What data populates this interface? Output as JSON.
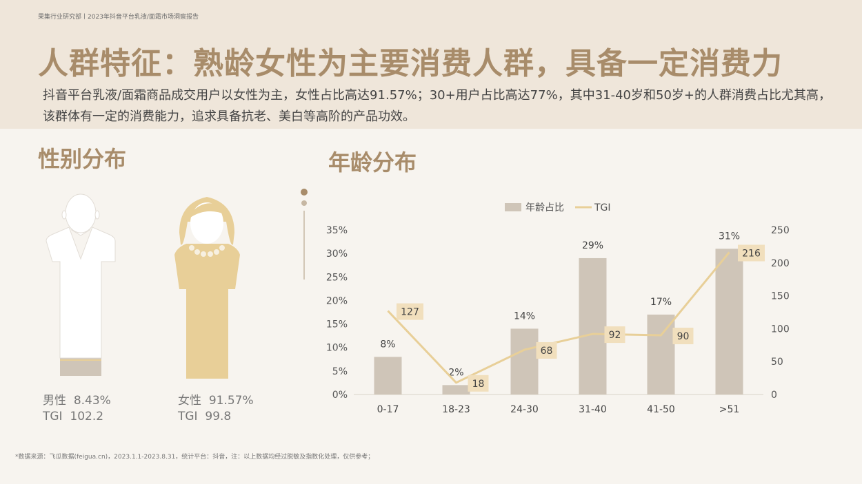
{
  "header": {
    "breadcrumb": "果集行业研究部丨2023年抖音平台乳液/面霜市场洞察报告",
    "title": "人群特征：熟龄女性为主要消费人群，具备一定消费力",
    "description": "抖音平台乳液/面霜商品成交用户以女性为主，女性占比高达91.57%；30+用户占比高达77%，其中31-40岁和50岁+的人群消费占比尤其高，该群体有一定的消费能力，追求具备抗老、美白等高阶的产品功效。"
  },
  "gender": {
    "title": "性别分布",
    "male": {
      "label": "男性",
      "pct": "8.43%",
      "tgi_label": "TGI",
      "tgi": "102.2",
      "share": 0.0843
    },
    "female": {
      "label": "女性",
      "pct": "91.57%",
      "tgi_label": "TGI",
      "tgi": "99.8",
      "share": 0.9157
    }
  },
  "age": {
    "title": "年龄分布"
  },
  "chart_data": {
    "type": "bar",
    "categories": [
      "0-17",
      "18-23",
      "24-30",
      "31-40",
      "41-50",
      ">51"
    ],
    "series": [
      {
        "name": "年龄占比",
        "type": "bar",
        "axis": "left",
        "values": [
          8,
          2,
          14,
          29,
          17,
          31
        ],
        "labels": [
          "8%",
          "2%",
          "14%",
          "29%",
          "17%",
          "31%"
        ],
        "color": "#cfc5b8"
      },
      {
        "name": "TGI",
        "type": "line",
        "axis": "right",
        "values": [
          127,
          18,
          68,
          92,
          90,
          216
        ],
        "labels": [
          "127",
          "18",
          "68",
          "92",
          "90",
          "216"
        ],
        "color": "#e8cf98"
      }
    ],
    "y_left": {
      "ticks": [
        "0%",
        "5%",
        "10%",
        "15%",
        "20%",
        "25%",
        "30%",
        "35%"
      ],
      "range": [
        0,
        35
      ]
    },
    "y_right": {
      "ticks": [
        "0",
        "50",
        "100",
        "150",
        "200",
        "250"
      ],
      "range": [
        0,
        250
      ]
    },
    "legend": "top",
    "grid": false
  },
  "footnote": "*数据来源：飞瓜数据(feigua.cn)，2023.1.1-2023.8.31，统计平台：抖音，注：以上数据均经过脱敏及指数化处理，仅供参考；",
  "colors": {
    "title": "#a88c6a",
    "bar": "#cfc5b8",
    "line": "#e8cf98",
    "female": "#e8cf98",
    "label_box": "#f1dfbd"
  }
}
